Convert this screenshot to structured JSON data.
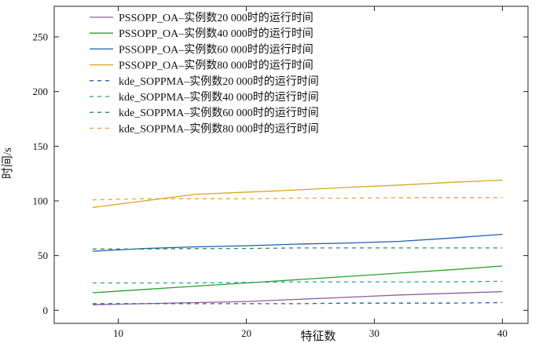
{
  "chart_data": {
    "type": "line",
    "xlabel": "特征数",
    "ylabel": "时间/s",
    "xlim": [
      5,
      42
    ],
    "ylim": [
      -12,
      278
    ],
    "xticks": [
      10,
      20,
      30,
      40
    ],
    "yticks": [
      0,
      50,
      100,
      150,
      200,
      250
    ],
    "grid": false,
    "legend_position": "top-left",
    "x": [
      8,
      12,
      16,
      20,
      24,
      28,
      32,
      36,
      40
    ],
    "series": [
      {
        "name": "PSSOPP_OA–实例数20 000时的运行时间",
        "color": "#8e5ea2",
        "dash": "solid",
        "values": [
          5,
          6,
          7,
          8,
          10,
          12,
          14,
          15.5,
          17
        ]
      },
      {
        "name": "PSSOPP_OA–实例数40 000时的运行时间",
        "color": "#2ca02c",
        "dash": "solid",
        "values": [
          16,
          19,
          22,
          25,
          28,
          31,
          34,
          37,
          40.5
        ]
      },
      {
        "name": "PSSOPP_OA–实例数60 000时的运行时间",
        "color": "#1f5fb0",
        "dash": "solid",
        "values": [
          54,
          56.5,
          58,
          59,
          60.5,
          61.5,
          63,
          66,
          69.5
        ]
      },
      {
        "name": "PSSOPP_OA–实例数80 000时的运行时间",
        "color": "#daa520",
        "dash": "solid",
        "values": [
          94,
          100,
          106,
          108,
          110,
          112.5,
          114.5,
          117,
          119
        ]
      },
      {
        "name": "kde_SOPPMA–实例数20 000时的运行时间",
        "color": "#1f5fb0",
        "dash": "dashed",
        "values": [
          6,
          6,
          6,
          6,
          6,
          6.5,
          6.5,
          6.5,
          7
        ]
      },
      {
        "name": "kde_SOPPMA–实例数40 000时的运行时间",
        "color": "#2aa198",
        "dash": "dashed",
        "values": [
          25,
          25,
          25,
          25.5,
          26,
          26,
          26,
          26,
          26.5
        ]
      },
      {
        "name": "kde_SOPPMA–实例数60 000时的运行时间",
        "color": "#2e8b57",
        "dash": "dashed",
        "values": [
          56,
          56,
          56.5,
          56.5,
          57,
          57,
          57,
          57,
          57
        ]
      },
      {
        "name": "kde_SOPPMA–实例数80 000时的运行时间",
        "color": "#f0a040",
        "dash": "dashed",
        "values": [
          101,
          102,
          102,
          102,
          102.5,
          102.5,
          103,
          103,
          103
        ]
      }
    ]
  }
}
